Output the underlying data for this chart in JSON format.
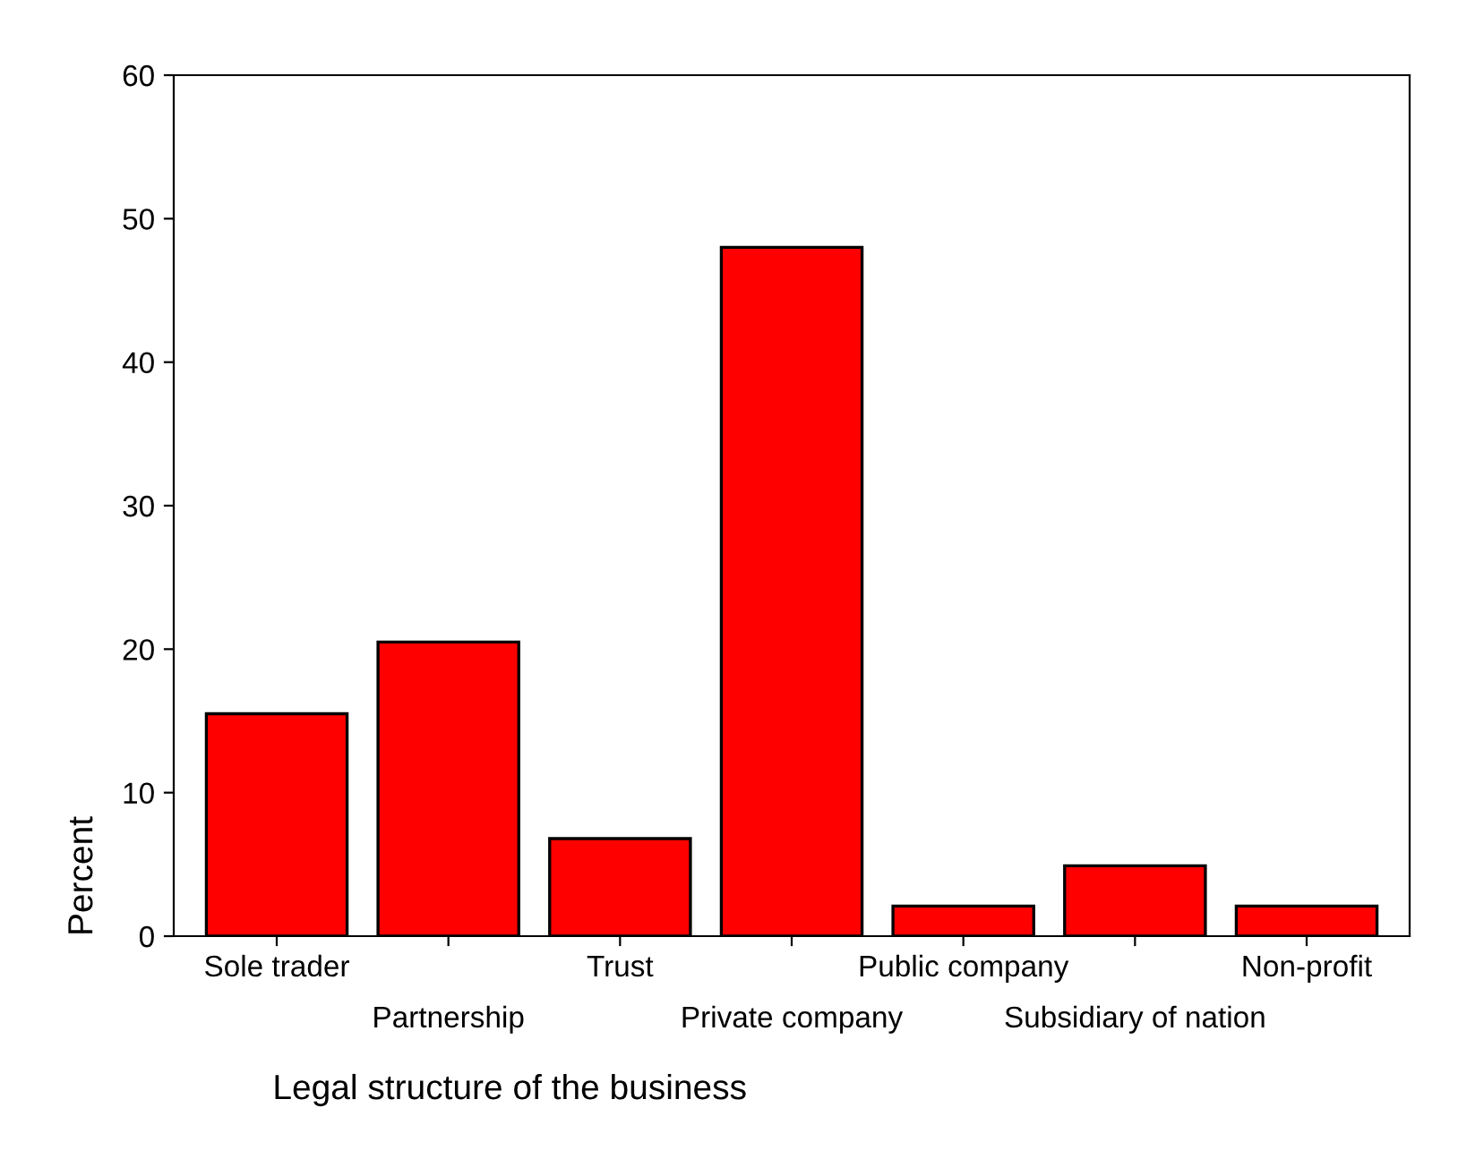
{
  "chart_data": {
    "type": "bar",
    "xlabel": "Legal structure of the business",
    "ylabel": "Percent",
    "categories": [
      "Sole trader",
      "Partnership",
      "Trust",
      "Private company",
      "Public company",
      "Subsidiary of nation",
      "Non-profit"
    ],
    "values": [
      15.5,
      20.5,
      6.8,
      48.0,
      2.1,
      4.9,
      2.1
    ],
    "color": "#ff0000",
    "ylim": [
      0,
      60
    ],
    "yticks": [
      0,
      10,
      20,
      30,
      40,
      50,
      60
    ],
    "grid": false
  }
}
